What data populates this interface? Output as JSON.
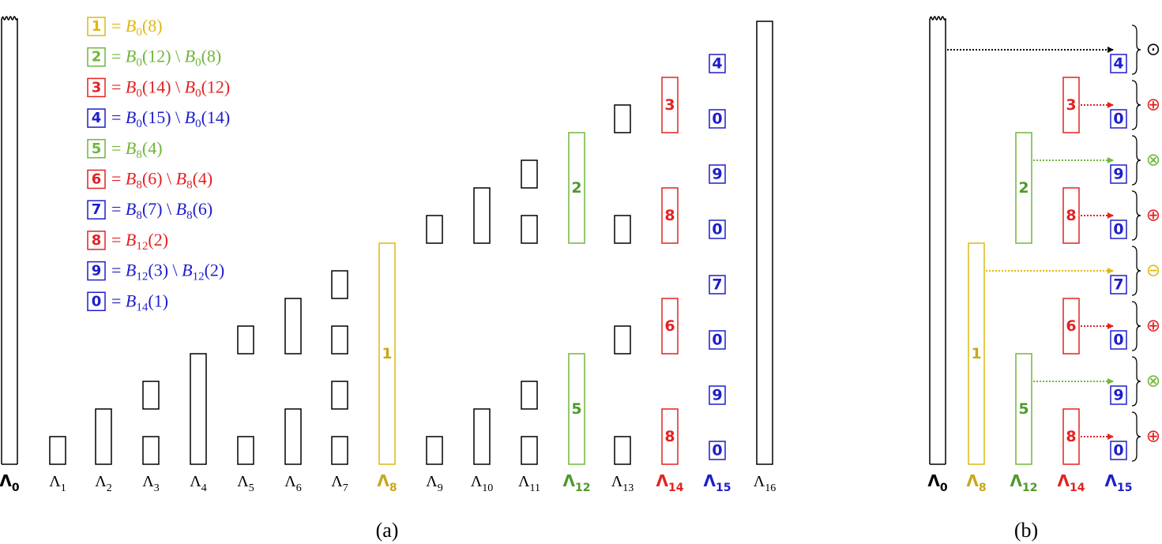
{
  "colors": {
    "black": "#000000",
    "yellow": "#DDB814",
    "yellow_text": "#C8A81A",
    "green": "#70B63A",
    "green_text": "#4E9A2A",
    "red": "#E32222",
    "blue": "#1E1ECB"
  },
  "panel_a": {
    "caption": "(a)",
    "legend": [
      {
        "digit": "1",
        "color": "yellow",
        "expr": [
          {
            "t": "B",
            "s": "0",
            "a": "(8)"
          }
        ]
      },
      {
        "digit": "2",
        "color": "green",
        "expr": [
          {
            "t": "B",
            "s": "0",
            "a": "(12)"
          },
          {
            "t": "B",
            "s": "0",
            "a": "(8)"
          }
        ]
      },
      {
        "digit": "3",
        "color": "red",
        "expr": [
          {
            "t": "B",
            "s": "0",
            "a": "(14)"
          },
          {
            "t": "B",
            "s": "0",
            "a": "(12)"
          }
        ]
      },
      {
        "digit": "4",
        "color": "blue",
        "expr": [
          {
            "t": "B",
            "s": "0",
            "a": "(15)"
          },
          {
            "t": "B",
            "s": "0",
            "a": "(14)"
          }
        ]
      },
      {
        "digit": "5",
        "color": "green",
        "expr": [
          {
            "t": "B",
            "s": "8",
            "a": "(4)"
          }
        ]
      },
      {
        "digit": "6",
        "color": "red",
        "expr": [
          {
            "t": "B",
            "s": "8",
            "a": "(6)"
          },
          {
            "t": "B",
            "s": "8",
            "a": "(4)"
          }
        ]
      },
      {
        "digit": "7",
        "color": "blue",
        "expr": [
          {
            "t": "B",
            "s": "8",
            "a": "(7)"
          },
          {
            "t": "B",
            "s": "8",
            "a": "(6)"
          }
        ]
      },
      {
        "digit": "8",
        "color": "red",
        "expr": [
          {
            "t": "B",
            "s": "12",
            "a": "(2)"
          }
        ]
      },
      {
        "digit": "9",
        "color": "blue",
        "expr": [
          {
            "t": "B",
            "s": "12",
            "a": "(3)"
          },
          {
            "t": "B",
            "s": "12",
            "a": "(2)"
          }
        ]
      },
      {
        "digit": "0",
        "color": "blue",
        "expr": [
          {
            "t": "B",
            "s": "14",
            "a": "(1)"
          }
        ]
      }
    ],
    "level_labels": [
      {
        "sym": "Λ",
        "sub": "0",
        "color": "black",
        "bold": true
      },
      {
        "sym": "Λ",
        "sub": "1",
        "color": "black",
        "bold": false
      },
      {
        "sym": "Λ",
        "sub": "2",
        "color": "black",
        "bold": false
      },
      {
        "sym": "Λ",
        "sub": "3",
        "color": "black",
        "bold": false
      },
      {
        "sym": "Λ",
        "sub": "4",
        "color": "black",
        "bold": false
      },
      {
        "sym": "Λ",
        "sub": "5",
        "color": "black",
        "bold": false
      },
      {
        "sym": "Λ",
        "sub": "6",
        "color": "black",
        "bold": false
      },
      {
        "sym": "Λ",
        "sub": "7",
        "color": "black",
        "bold": false
      },
      {
        "sym": "Λ",
        "sub": "8",
        "color": "yellow_text",
        "bold": true
      },
      {
        "sym": "Λ",
        "sub": "9",
        "color": "black",
        "bold": false
      },
      {
        "sym": "Λ",
        "sub": "10",
        "color": "black",
        "bold": false
      },
      {
        "sym": "Λ",
        "sub": "11",
        "color": "black",
        "bold": false
      },
      {
        "sym": "Λ",
        "sub": "12",
        "color": "green_text",
        "bold": true
      },
      {
        "sym": "Λ",
        "sub": "13",
        "color": "black",
        "bold": false
      },
      {
        "sym": "Λ",
        "sub": "14",
        "color": "red",
        "bold": true
      },
      {
        "sym": "Λ",
        "sub": "15",
        "color": "blue",
        "bold": true
      },
      {
        "sym": "Λ",
        "sub": "16",
        "color": "black",
        "bold": false
      }
    ],
    "col8_block": {
      "label": "1",
      "color": "yellow"
    },
    "col12_blocks": [
      {
        "label": "2",
        "color": "green"
      },
      {
        "label": "5",
        "color": "green"
      }
    ],
    "col14_blocks": [
      {
        "label": "3",
        "color": "red"
      },
      {
        "label": "8",
        "color": "red"
      },
      {
        "label": "6",
        "color": "red"
      },
      {
        "label": "8",
        "color": "red"
      }
    ],
    "col15_blocks": [
      "4",
      "0",
      "9",
      "0",
      "7",
      "0",
      "9",
      "0"
    ]
  },
  "panel_b": {
    "caption": "(b)",
    "level_labels": [
      {
        "sym": "Λ",
        "sub": "0",
        "color": "black"
      },
      {
        "sym": "Λ",
        "sub": "8",
        "color": "yellow_text"
      },
      {
        "sym": "Λ",
        "sub": "12",
        "color": "green_text"
      },
      {
        "sym": "Λ",
        "sub": "14",
        "color": "red"
      },
      {
        "sym": "Λ",
        "sub": "15",
        "color": "blue"
      }
    ],
    "col8_block": {
      "label": "1",
      "color": "yellow"
    },
    "col12_blocks": [
      {
        "label": "2",
        "color": "green"
      },
      {
        "label": "5",
        "color": "green"
      }
    ],
    "col14_blocks": [
      {
        "label": "3",
        "color": "red"
      },
      {
        "label": "8",
        "color": "red"
      },
      {
        "label": "6",
        "color": "red"
      },
      {
        "label": "8",
        "color": "red"
      }
    ],
    "col15_blocks": [
      "4",
      "0",
      "9",
      "0",
      "7",
      "0",
      "9",
      "0"
    ],
    "operators": [
      {
        "symbol": "⊙",
        "color": "black",
        "source": "Λ0"
      },
      {
        "symbol": "⊕",
        "color": "red",
        "source": "Λ14"
      },
      {
        "symbol": "⊗",
        "color": "green",
        "source": "Λ12"
      },
      {
        "symbol": "⊕",
        "color": "red",
        "source": "Λ14"
      },
      {
        "symbol": "⊖",
        "color": "yellow",
        "source": "Λ8"
      },
      {
        "symbol": "⊕",
        "color": "red",
        "source": "Λ14"
      },
      {
        "symbol": "⊗",
        "color": "green",
        "source": "Λ12"
      },
      {
        "symbol": "⊕",
        "color": "red",
        "source": "Λ14"
      }
    ]
  }
}
